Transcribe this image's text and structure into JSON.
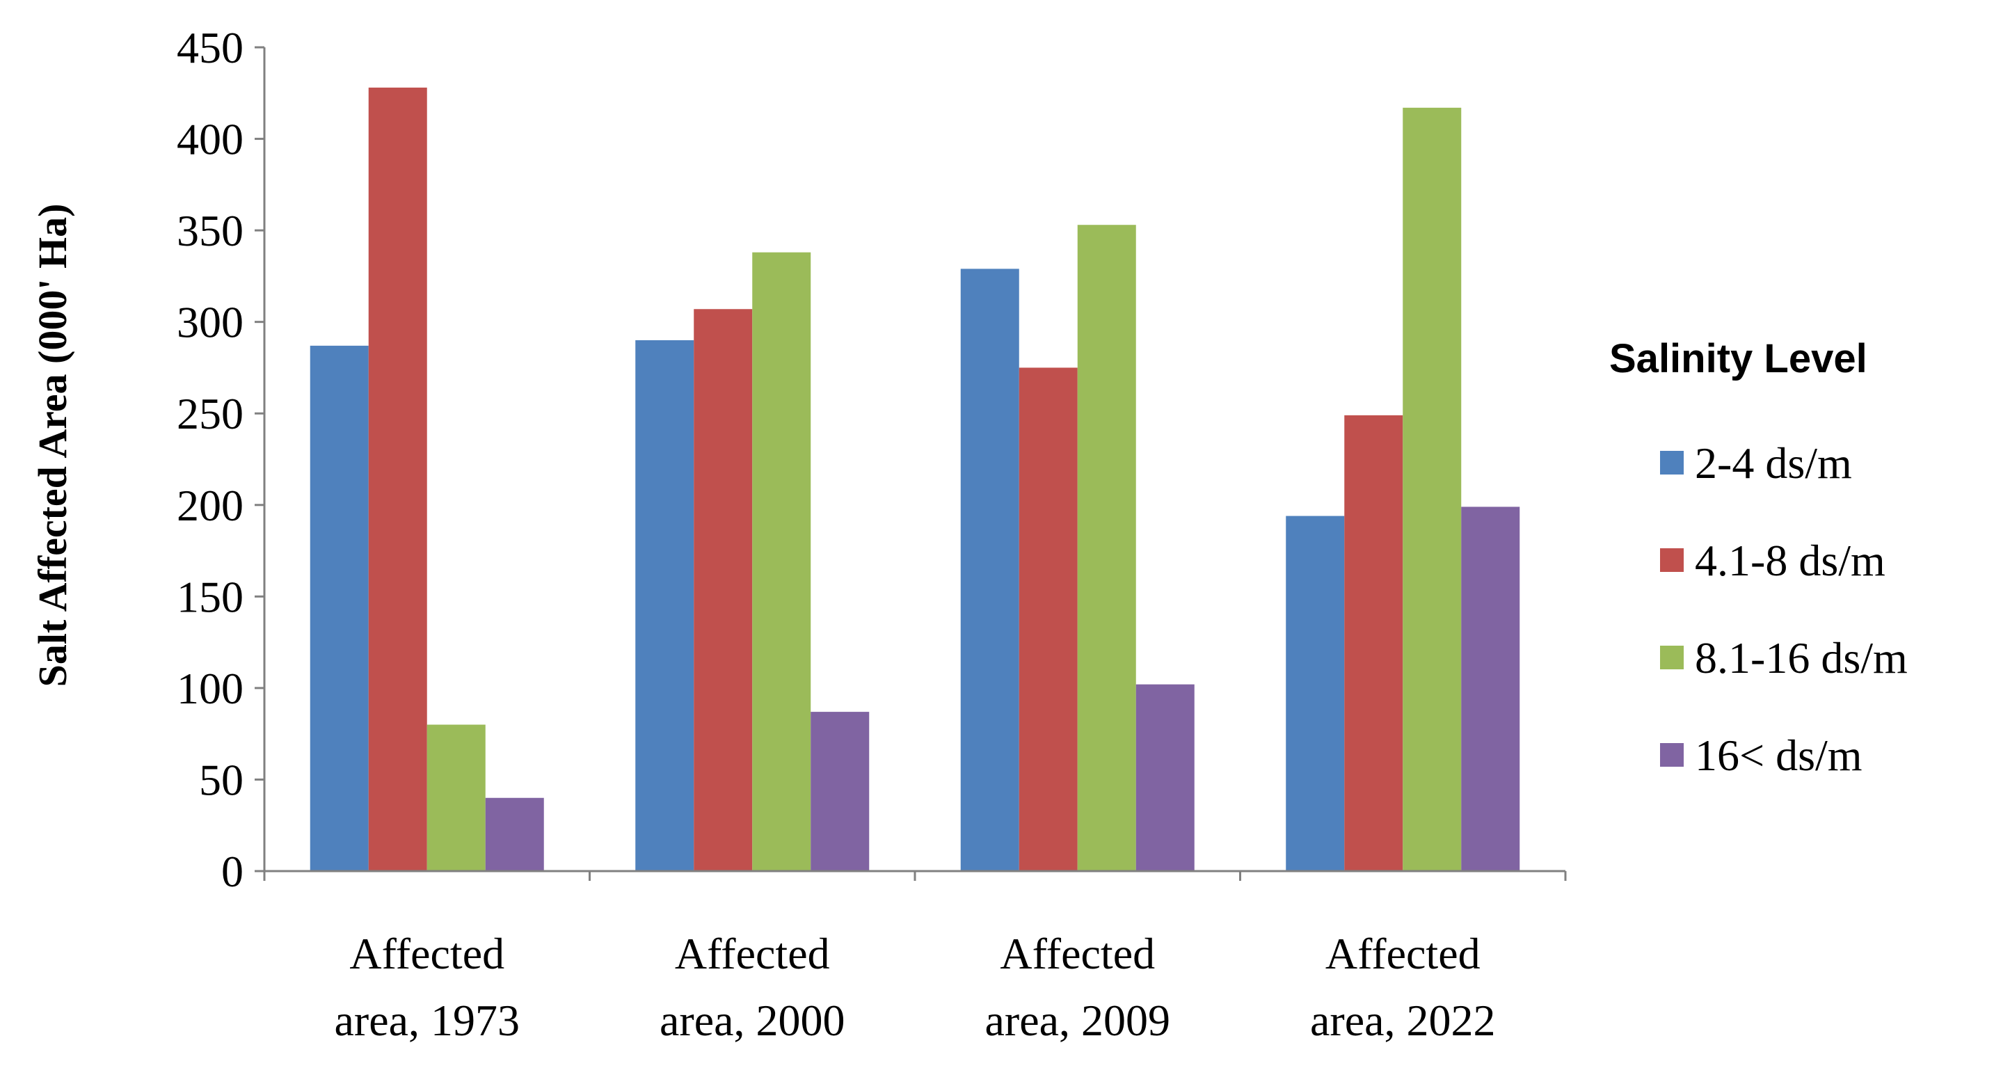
{
  "chart_data": {
    "type": "bar",
    "title": "",
    "xlabel": "",
    "ylabel": "Salt Affected Area (000' Ha)",
    "ylim": [
      0,
      450
    ],
    "yticks": [
      0,
      50,
      100,
      150,
      200,
      250,
      300,
      350,
      400,
      450
    ],
    "grid": false,
    "categories": [
      [
        "Affected",
        "area, 1973"
      ],
      [
        "Affected",
        "area, 2000"
      ],
      [
        "Affected",
        "area, 2009"
      ],
      [
        "Affected",
        "area, 2022"
      ]
    ],
    "legend": {
      "title": "Salinity Level",
      "position": "right"
    },
    "series": [
      {
        "name": "2-4 ds/m",
        "color": "#4F81BD",
        "values": [
          287,
          290,
          329,
          194
        ]
      },
      {
        "name": "4.1-8 ds/m",
        "color": "#C0504D",
        "values": [
          428,
          307,
          275,
          249
        ]
      },
      {
        "name": "8.1-16 ds/m",
        "color": "#9BBB59",
        "values": [
          80,
          338,
          353,
          417
        ]
      },
      {
        "name": "16< ds/m",
        "color": "#8064A2",
        "values": [
          40,
          87,
          102,
          199
        ]
      }
    ]
  }
}
